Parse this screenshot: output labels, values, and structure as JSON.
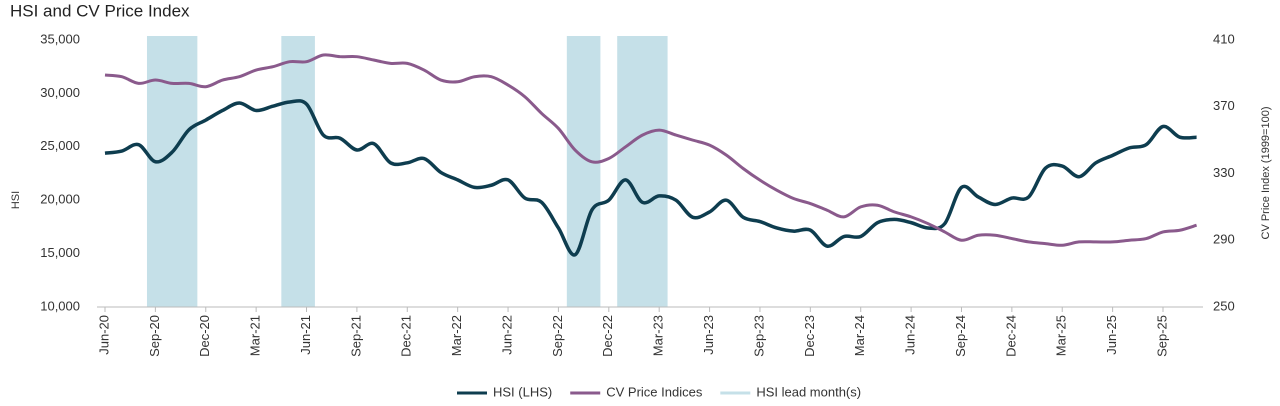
{
  "chart_data": {
    "type": "line",
    "title": "HSI and CV Price Index",
    "ylabel": "HSI",
    "y2label": "CV Price Index (1999=100)",
    "categories": [
      "Jun-20",
      null,
      null,
      "Sep-20",
      null,
      null,
      "Dec-20",
      null,
      null,
      "Mar-21",
      null,
      null,
      "Jun-21",
      null,
      null,
      "Sep-21",
      null,
      null,
      "Dec-21",
      null,
      null,
      "Mar-22",
      null,
      null,
      "Jun-22",
      null,
      null,
      "Sep-22",
      null,
      null,
      "Dec-22",
      null,
      null,
      "Mar-23",
      null,
      null,
      "Jun-23",
      null,
      null,
      "Sep-23",
      null,
      null,
      "Dec-23",
      null,
      null,
      "Mar-24",
      null,
      null,
      "Jun-24",
      null,
      null,
      "Sep-24",
      null,
      null,
      "Dec-24",
      null,
      null,
      "Mar-25",
      null,
      null,
      "Jun-25",
      null,
      null,
      "Sep-25",
      null,
      null
    ],
    "series": [
      {
        "name": "HSI (LHS)",
        "color": "#0e3d4f",
        "values": [
          24400,
          24600,
          25200,
          23600,
          24500,
          26600,
          27500,
          28400,
          29100,
          28400,
          28800,
          29200,
          29000,
          26100,
          25800,
          24700,
          25300,
          23500,
          23500,
          23900,
          22600,
          21900,
          21200,
          21400,
          21900,
          20200,
          19800,
          17400,
          14900,
          19100,
          20000,
          21900,
          19800,
          20400,
          20000,
          18400,
          18900,
          20000,
          18400,
          18000,
          17400,
          17100,
          17200,
          15700,
          16600,
          16600,
          17900,
          18200,
          17900,
          17400,
          17800,
          21200,
          20300,
          19600,
          20200,
          20300,
          23000,
          23200,
          22200,
          23500,
          24200,
          24900,
          25200,
          26900,
          25900,
          25900
        ]
      },
      {
        "name": "CV Price Indices",
        "color": "#8a5a8c",
        "axis": "y2",
        "values": [
          389,
          388,
          384,
          386,
          384,
          384,
          382,
          386,
          388,
          392,
          394,
          397,
          397,
          401,
          400,
          400,
          398,
          396,
          396,
          392,
          386,
          385,
          388,
          388,
          383,
          376,
          366,
          357,
          344,
          337,
          339,
          346,
          353,
          356,
          353,
          350,
          347,
          341,
          333,
          326,
          320,
          315,
          312,
          308,
          304,
          310,
          311,
          307,
          304,
          300,
          295,
          290,
          293,
          293,
          291,
          289,
          288,
          287,
          289,
          289,
          289,
          290,
          291,
          295,
          296,
          299
        ]
      }
    ],
    "lead_months": {
      "name": "HSI lead month(s)",
      "color": "#c5e0e8",
      "ranges": [
        [
          3,
          5
        ],
        [
          11,
          12
        ],
        [
          28,
          29
        ],
        [
          31,
          33
        ]
      ]
    },
    "ylim": [
      10000,
      35000
    ],
    "yticks": [
      {
        "value": 10000,
        "label": "10,000"
      },
      {
        "value": 15000,
        "label": "15,000"
      },
      {
        "value": 20000,
        "label": "20,000"
      },
      {
        "value": 25000,
        "label": "25,000"
      },
      {
        "value": 30000,
        "label": "30,000"
      },
      {
        "value": 35000,
        "label": "35,000"
      }
    ],
    "y2lim": [
      250,
      410
    ],
    "y2ticks": [
      250,
      290,
      330,
      370,
      410
    ],
    "grid": false,
    "legend": "bottom"
  }
}
